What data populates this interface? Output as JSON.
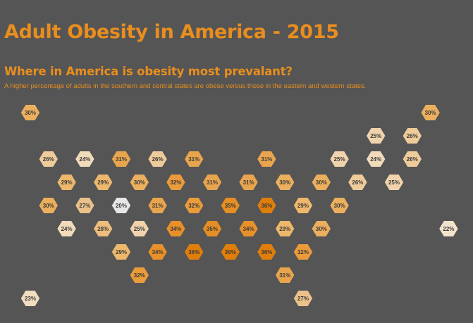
{
  "header": {
    "title": "Adult Obesity in America - 2015",
    "subtitle": "Where in America is obesity most prevalant?",
    "description": "A higher percentage of adults in the southern and central states are obese versus those in the eastern and western states."
  },
  "colors": {
    "background": "#555555",
    "title": "#E98E1E",
    "scale": {
      "20": "#E6E6E6",
      "22": "#F3E3CD",
      "23": "#F1DDC0",
      "24": "#F1DBBB",
      "25": "#F0D3AC",
      "26": "#EECB9A",
      "27": "#EBC18A",
      "28": "#EDBD7E",
      "29": "#EDB86C",
      "30": "#EBAF5E",
      "31": "#E9A54E",
      "32": "#EA9B3A",
      "34": "#E8902A",
      "35": "#E58E23",
      "36": "#E07E0B"
    }
  },
  "chart_data": {
    "type": "hexmap",
    "title": "Adult Obesity in America - 2015",
    "subtitle": "Where in America is obesity most prevalant?",
    "unit": "%",
    "cells": [
      {
        "row": 0,
        "col": 0,
        "value": 30
      },
      {
        "row": 0,
        "col": 11,
        "value": 30
      },
      {
        "row": 1,
        "col": 9.5,
        "value": 25
      },
      {
        "row": 1,
        "col": 10.5,
        "value": 26
      },
      {
        "row": 2,
        "col": 0.5,
        "value": 26
      },
      {
        "row": 2,
        "col": 1.5,
        "value": 24
      },
      {
        "row": 2,
        "col": 2.5,
        "value": 31
      },
      {
        "row": 2,
        "col": 3.5,
        "value": 26
      },
      {
        "row": 2,
        "col": 4.5,
        "value": 31
      },
      {
        "row": 2,
        "col": 6.5,
        "value": 31
      },
      {
        "row": 2,
        "col": 8.5,
        "value": 25
      },
      {
        "row": 2,
        "col": 9.5,
        "value": 24
      },
      {
        "row": 2,
        "col": 10.5,
        "value": 26
      },
      {
        "row": 3,
        "col": 1,
        "value": 29
      },
      {
        "row": 3,
        "col": 2,
        "value": 29
      },
      {
        "row": 3,
        "col": 3,
        "value": 30
      },
      {
        "row": 3,
        "col": 4,
        "value": 32
      },
      {
        "row": 3,
        "col": 5,
        "value": 31
      },
      {
        "row": 3,
        "col": 6,
        "value": 31
      },
      {
        "row": 3,
        "col": 7,
        "value": 30
      },
      {
        "row": 3,
        "col": 8,
        "value": 30
      },
      {
        "row": 3,
        "col": 9,
        "value": 26
      },
      {
        "row": 3,
        "col": 10,
        "value": 25
      },
      {
        "row": 4,
        "col": 0.5,
        "value": 30
      },
      {
        "row": 4,
        "col": 1.5,
        "value": 27
      },
      {
        "row": 4,
        "col": 2.5,
        "value": 20
      },
      {
        "row": 4,
        "col": 3.5,
        "value": 31
      },
      {
        "row": 4,
        "col": 4.5,
        "value": 32
      },
      {
        "row": 4,
        "col": 5.5,
        "value": 35
      },
      {
        "row": 4,
        "col": 6.5,
        "value": 36
      },
      {
        "row": 4,
        "col": 7.5,
        "value": 29
      },
      {
        "row": 4,
        "col": 8.5,
        "value": 30
      },
      {
        "row": 5,
        "col": 1,
        "value": 24
      },
      {
        "row": 5,
        "col": 2,
        "value": 28
      },
      {
        "row": 5,
        "col": 3,
        "value": 25
      },
      {
        "row": 5,
        "col": 4,
        "value": 34
      },
      {
        "row": 5,
        "col": 5,
        "value": 35
      },
      {
        "row": 5,
        "col": 6,
        "value": 34
      },
      {
        "row": 5,
        "col": 7,
        "value": 29
      },
      {
        "row": 5,
        "col": 8,
        "value": 30
      },
      {
        "row": 5,
        "col": 11.5,
        "value": 22
      },
      {
        "row": 6,
        "col": 2.5,
        "value": 29
      },
      {
        "row": 6,
        "col": 3.5,
        "value": 34
      },
      {
        "row": 6,
        "col": 4.5,
        "value": 36
      },
      {
        "row": 6,
        "col": 5.5,
        "value": 36
      },
      {
        "row": 6,
        "col": 6.5,
        "value": 36
      },
      {
        "row": 6,
        "col": 7.5,
        "value": 32
      },
      {
        "row": 7,
        "col": 3,
        "value": 32
      },
      {
        "row": 7,
        "col": 7,
        "value": 31
      },
      {
        "row": 8,
        "col": 0,
        "value": 23
      },
      {
        "row": 8,
        "col": 7.5,
        "value": 27
      }
    ]
  }
}
